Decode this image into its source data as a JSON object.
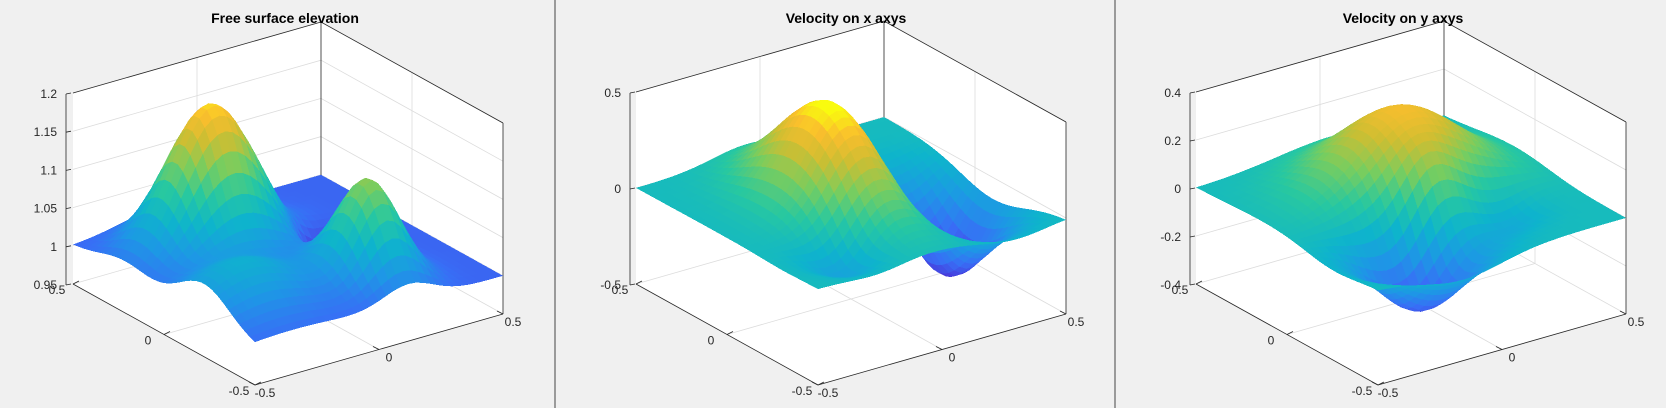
{
  "chart_data": [
    {
      "type": "surface",
      "title": "Free surface elevation",
      "x_ticks": [
        "-0.5",
        "0",
        "0.5"
      ],
      "y_ticks": [
        "-0.5",
        "0",
        "0.5"
      ],
      "z_ticks": [
        "0.95",
        "1",
        "1.05",
        "1.1",
        "1.15",
        "1.2"
      ],
      "xlim": [
        -0.5,
        0.5
      ],
      "ylim": [
        -0.5,
        0.5
      ],
      "zlim": [
        0.95,
        1.2
      ],
      "colormap": "parula",
      "grid": true
    },
    {
      "type": "surface",
      "title": "Velocity on x axys",
      "x_ticks": [
        "-0.5",
        "0",
        "0.5"
      ],
      "y_ticks": [
        "-0.5",
        "0",
        "0.5"
      ],
      "z_ticks": [
        "-0.5",
        "0",
        "0.5"
      ],
      "xlim": [
        -0.5,
        0.5
      ],
      "ylim": [
        -0.5,
        0.5
      ],
      "zlim": [
        -0.5,
        0.5
      ],
      "colormap": "parula",
      "grid": true
    },
    {
      "type": "surface",
      "title": "Velocity on y axys",
      "x_ticks": [
        "-0.5",
        "0",
        "0.5"
      ],
      "y_ticks": [
        "-0.5",
        "0",
        "0.5"
      ],
      "z_ticks": [
        "-0.4",
        "-0.2",
        "0",
        "0.2",
        "0.4"
      ],
      "xlim": [
        -0.5,
        0.5
      ],
      "ylim": [
        -0.5,
        0.5
      ],
      "zlim": [
        -0.4,
        0.4
      ],
      "colormap": "parula",
      "grid": true
    }
  ]
}
